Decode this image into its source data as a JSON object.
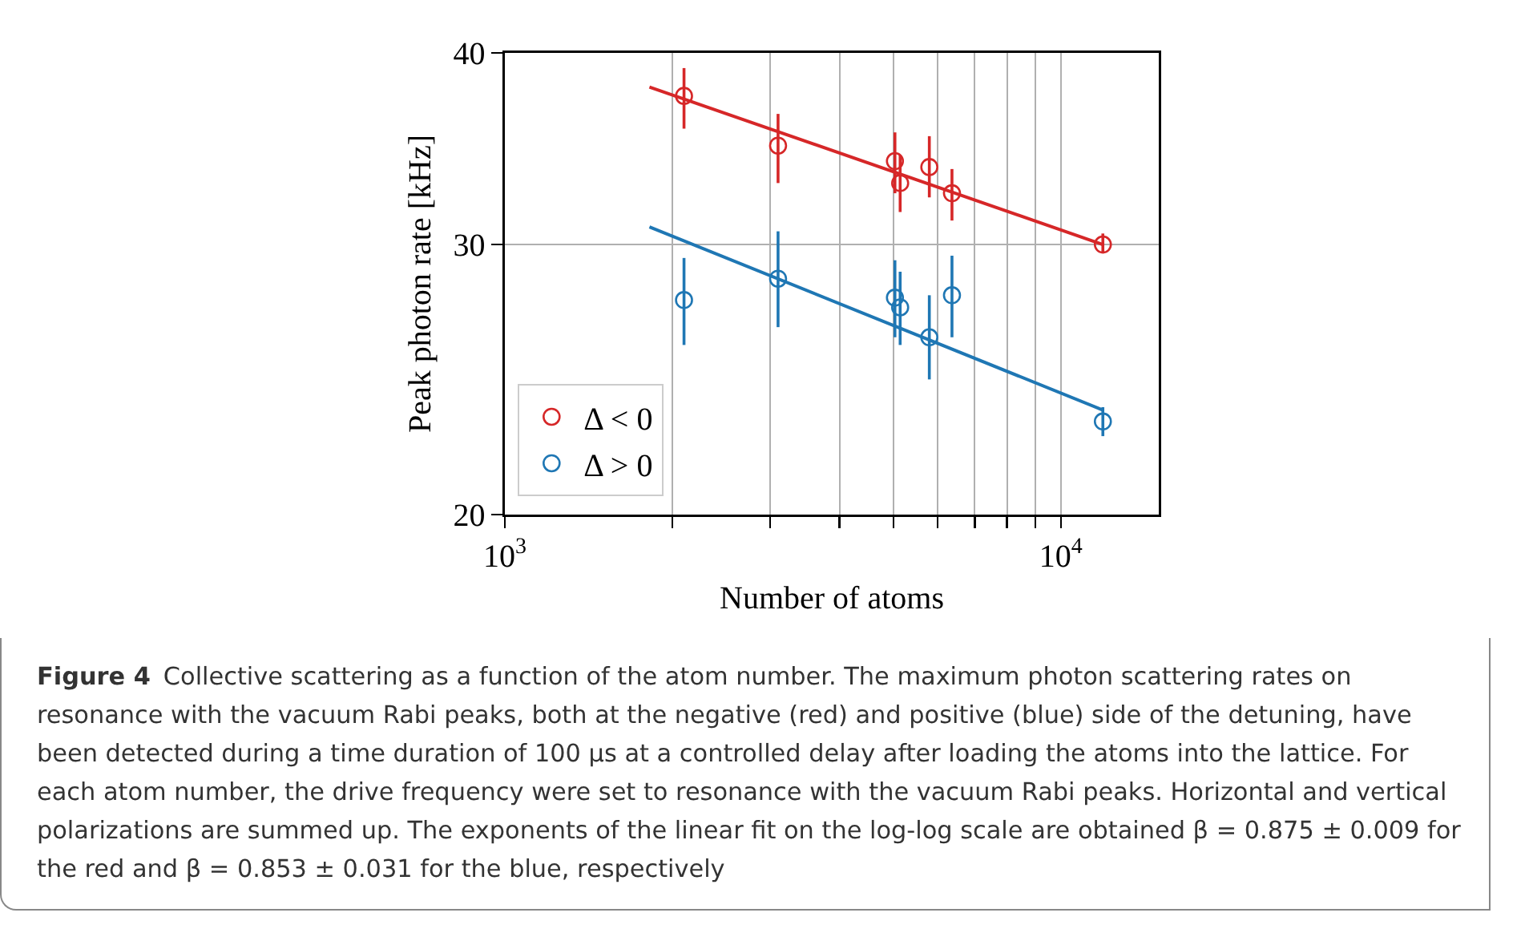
{
  "chart_data": {
    "type": "scatter",
    "xlabel": "Number of atoms",
    "ylabel": "Peak photon rate [kHz]",
    "log": "xy",
    "xlim": [
      1000,
      15000
    ],
    "ylim": [
      20,
      40
    ],
    "xticks": [
      {
        "value": 1000,
        "label": "10$^{3}$"
      },
      {
        "value": 2000,
        "label": null
      },
      {
        "value": 3000,
        "label": null
      },
      {
        "value": 4000,
        "label": null
      },
      {
        "value": 5000,
        "label": null
      },
      {
        "value": 6000,
        "label": null
      },
      {
        "value": 7000,
        "label": null
      },
      {
        "value": 8000,
        "label": null
      },
      {
        "value": 9000,
        "label": null
      },
      {
        "value": 10000,
        "label": "10$^{4}$"
      }
    ],
    "yticks": [
      20,
      30,
      40
    ],
    "grid": true,
    "legend": "bottom left",
    "series": [
      {
        "name": "Δ < 0",
        "color": "#d62728",
        "marker": "circle",
        "x": [
          2100,
          3100,
          5030,
          5140,
          5800,
          6370,
          11900
        ],
        "values": [
          37.5,
          34.8,
          34.0,
          32.9,
          33.7,
          32.4,
          30.0
        ],
        "errors": [
          [
            35.7,
            39.1
          ],
          [
            32.9,
            36.5
          ],
          [
            32.4,
            35.5
          ],
          [
            31.5,
            34.3
          ],
          [
            32.2,
            35.3
          ],
          [
            31.1,
            33.6
          ],
          [
            29.6,
            30.5
          ]
        ]
      },
      {
        "name": "Δ > 0",
        "color": "#1f77b4",
        "marker": "circle",
        "x": [
          2100,
          3100,
          5030,
          5140,
          5800,
          6370,
          11900
        ],
        "values": [
          27.6,
          28.5,
          27.7,
          27.3,
          26.1,
          27.8,
          23.0
        ],
        "errors": [
          [
            25.8,
            29.4
          ],
          [
            26.5,
            30.6
          ],
          [
            26.1,
            29.3
          ],
          [
            25.8,
            28.8
          ],
          [
            24.5,
            27.8
          ],
          [
            26.1,
            29.5
          ],
          [
            22.5,
            23.5
          ]
        ]
      },
      {
        "type": "line",
        "color": "#d62728",
        "marker": "none",
        "x": [
          1820,
          11900
        ],
        "values": [
          38.0,
          30.0
        ]
      },
      {
        "type": "line",
        "color": "#1f77b4",
        "marker": "none",
        "x": [
          1820,
          11900
        ],
        "values": [
          30.8,
          23.4
        ]
      }
    ],
    "annotations": [
      "Figure 4",
      "Collective scattering as a function of the atom number. The maximum photon scattering rates on resonance with the vacuum Rabi peaks, both at the negative (red) and positive (blue) side of the detuning, have been detected during a time duration of 100 μs at a controlled delay after loading the atoms into the lattice. For each atom number, the drive frequency were set to resonance with the vacuum Rabi peaks. Horizontal and vertical polarizations are summed up. The exponents of the linear fit on the log-log scale are obtained β = 0.875 ± 0.009 for the red and β = 0.853 ± 0.031 for the blue, respectively"
    ]
  }
}
